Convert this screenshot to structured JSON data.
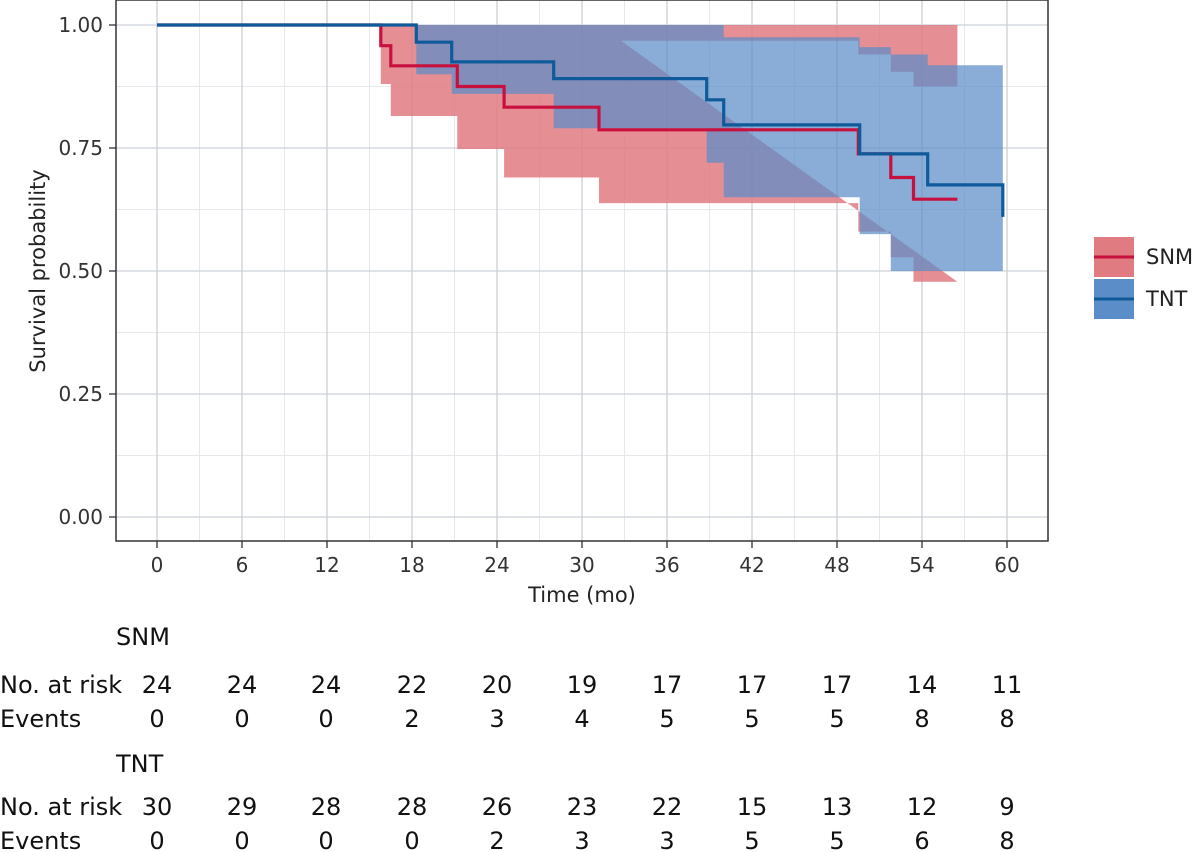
{
  "chart_data": {
    "type": "line",
    "subtype": "kaplan-meier",
    "title": "",
    "xlabel": "Time (mo)",
    "ylabel": "Survival probability",
    "xlim": [
      0,
      60
    ],
    "ylim": [
      0,
      1
    ],
    "x_ticks": [
      "0",
      "6",
      "12",
      "18",
      "24",
      "30",
      "36",
      "42",
      "48",
      "54",
      "60"
    ],
    "y_ticks": [
      "0.00",
      "0.25",
      "0.50",
      "0.75",
      "1.00"
    ],
    "grid": true,
    "legend_position": "right",
    "series": [
      {
        "name": "SNM",
        "line_color": "#c8103e",
        "band_color": "#e07b82",
        "curve": [
          [
            0,
            1.0
          ],
          [
            15.8,
            1.0
          ],
          [
            15.8,
            0.958
          ],
          [
            16.5,
            0.958
          ],
          [
            16.5,
            0.917
          ],
          [
            21.2,
            0.917
          ],
          [
            21.2,
            0.875
          ],
          [
            24.5,
            0.875
          ],
          [
            24.5,
            0.833
          ],
          [
            31.2,
            0.833
          ],
          [
            31.2,
            0.787
          ],
          [
            49.5,
            0.787
          ],
          [
            49.5,
            0.738
          ],
          [
            51.8,
            0.738
          ],
          [
            51.8,
            0.69
          ],
          [
            53.4,
            0.69
          ],
          [
            53.4,
            0.646
          ],
          [
            56.5,
            0.646
          ]
        ],
        "upper": [
          [
            15.8,
            1.0
          ],
          [
            56.5,
            1.0
          ],
          [
            56.5,
            0.875
          ],
          [
            53.4,
            0.875
          ],
          [
            53.4,
            0.905
          ],
          [
            51.8,
            0.905
          ],
          [
            51.8,
            0.94
          ],
          [
            49.5,
            0.94
          ],
          [
            49.5,
            0.968
          ],
          [
            31.2,
            0.968
          ],
          [
            31.2,
            1.0
          ]
        ],
        "lower": [
          [
            15.8,
            0.88
          ],
          [
            16.5,
            0.88
          ],
          [
            16.5,
            0.815
          ],
          [
            21.2,
            0.815
          ],
          [
            21.2,
            0.748
          ],
          [
            24.5,
            0.748
          ],
          [
            24.5,
            0.69
          ],
          [
            31.2,
            0.69
          ],
          [
            31.2,
            0.638
          ],
          [
            49.5,
            0.638
          ],
          [
            49.5,
            0.58
          ],
          [
            51.8,
            0.58
          ],
          [
            51.8,
            0.528
          ],
          [
            53.4,
            0.528
          ],
          [
            53.4,
            0.478
          ],
          [
            56.5,
            0.478
          ]
        ]
      },
      {
        "name": "TNT",
        "line_color": "#0f5a9a",
        "band_color": "#5b8ec8",
        "curve": [
          [
            0,
            1.0
          ],
          [
            18.3,
            1.0
          ],
          [
            18.3,
            0.965
          ],
          [
            20.8,
            0.965
          ],
          [
            20.8,
            0.925
          ],
          [
            28.0,
            0.925
          ],
          [
            28.0,
            0.891
          ],
          [
            38.8,
            0.891
          ],
          [
            38.8,
            0.848
          ],
          [
            40.0,
            0.848
          ],
          [
            40.0,
            0.797
          ],
          [
            49.6,
            0.797
          ],
          [
            49.6,
            0.738
          ],
          [
            54.4,
            0.738
          ],
          [
            54.4,
            0.675
          ],
          [
            59.7,
            0.675
          ],
          [
            59.7,
            0.61
          ]
        ],
        "upper": [
          [
            18.3,
            1.0
          ],
          [
            40.0,
            1.0
          ],
          [
            40.0,
            0.975
          ],
          [
            49.6,
            0.975
          ],
          [
            49.6,
            0.955
          ],
          [
            51.8,
            0.955
          ],
          [
            51.8,
            0.94
          ],
          [
            54.4,
            0.94
          ],
          [
            54.4,
            0.918
          ],
          [
            59.7,
            0.918
          ],
          [
            59.7,
            0.61
          ]
        ],
        "lower": [
          [
            18.3,
            0.9
          ],
          [
            20.8,
            0.9
          ],
          [
            20.8,
            0.86
          ],
          [
            28.0,
            0.86
          ],
          [
            28.0,
            0.79
          ],
          [
            38.8,
            0.79
          ],
          [
            38.8,
            0.72
          ],
          [
            40.0,
            0.72
          ],
          [
            40.0,
            0.65
          ],
          [
            49.6,
            0.65
          ],
          [
            49.6,
            0.575
          ],
          [
            51.8,
            0.575
          ],
          [
            51.8,
            0.5
          ],
          [
            59.7,
            0.5
          ]
        ]
      }
    ],
    "risk_table": {
      "groups": [
        {
          "name": "SNM",
          "rows": [
            {
              "label": "No. at risk",
              "values": [
                "24",
                "24",
                "24",
                "22",
                "20",
                "19",
                "17",
                "17",
                "17",
                "14",
                "11"
              ]
            },
            {
              "label": "Events",
              "values": [
                "0",
                "0",
                "0",
                "2",
                "3",
                "4",
                "5",
                "5",
                "5",
                "8",
                "8"
              ]
            }
          ]
        },
        {
          "name": "TNT",
          "rows": [
            {
              "label": "No. at risk",
              "values": [
                "30",
                "29",
                "28",
                "28",
                "26",
                "23",
                "22",
                "15",
                "13",
                "12",
                "9"
              ]
            },
            {
              "label": "Events",
              "values": [
                "0",
                "0",
                "0",
                "0",
                "2",
                "3",
                "3",
                "5",
                "5",
                "6",
                "8"
              ]
            }
          ]
        }
      ]
    }
  }
}
